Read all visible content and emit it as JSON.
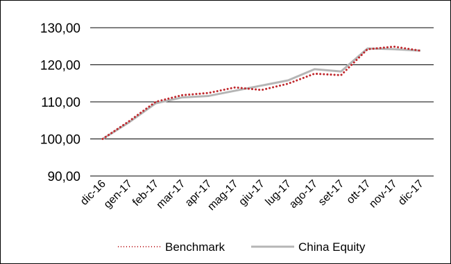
{
  "chart_data": {
    "type": "line",
    "title": "",
    "xlabel": "",
    "ylabel": "",
    "categories": [
      "dic-16",
      "gen-17",
      "feb-17",
      "mar-17",
      "apr-17",
      "mag-17",
      "giu-17",
      "lug-17",
      "ago-17",
      "set-17",
      "ott-17",
      "nov-17",
      "dic-17"
    ],
    "ylim": [
      90,
      130
    ],
    "yticks": [
      90,
      100,
      110,
      120,
      130
    ],
    "ytick_labels": [
      "90,00",
      "100,00",
      "110,00",
      "120,00",
      "130,00"
    ],
    "grid": true,
    "legend_position": "bottom",
    "series": [
      {
        "name": "Benchmark",
        "color": "#c0282d",
        "style": "dotted",
        "values": [
          100.0,
          104.8,
          110.0,
          111.8,
          112.4,
          113.9,
          113.2,
          114.9,
          117.6,
          117.2,
          124.2,
          124.9,
          123.8
        ]
      },
      {
        "name": "China Equity",
        "color": "#b5b5b5",
        "style": "solid",
        "values": [
          100.0,
          104.5,
          109.6,
          111.2,
          111.6,
          113.0,
          114.4,
          115.8,
          118.8,
          118.2,
          124.4,
          124.2,
          123.8
        ]
      }
    ]
  }
}
